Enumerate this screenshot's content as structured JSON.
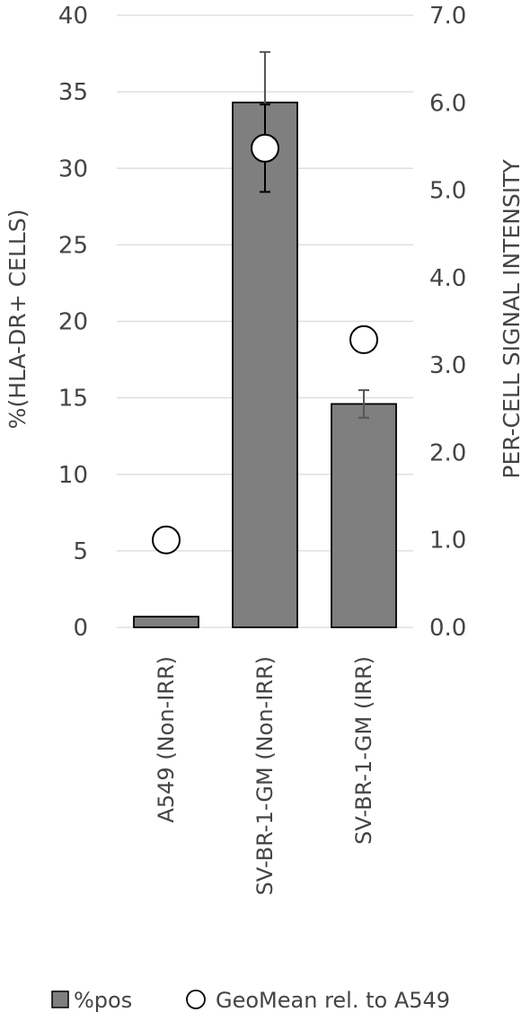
{
  "chart_data": {
    "type": "bar",
    "categories": [
      "A549 (Non-IRR)",
      "SV-BR-1-GM (Non-IRR)",
      "SV-BR-1-GM (IRR)"
    ],
    "series": [
      {
        "name": "%pos",
        "type": "bar",
        "axis": "left",
        "values": [
          0.7,
          34.3,
          14.6
        ],
        "error": [
          0,
          3.3,
          0.9
        ],
        "color": "#7f7f7f"
      },
      {
        "name": "GeoMean rel. to A549",
        "type": "scatter",
        "axis": "right",
        "values": [
          1.0,
          5.48,
          3.29
        ],
        "error": [
          0,
          0.5,
          0
        ],
        "color": "#ffffff"
      }
    ],
    "ylabel": "%(HLA-DR+ CELLS)",
    "y2label": "PER-CELL SIGNAL INTENSITY",
    "ylim": [
      0,
      40
    ],
    "y2lim": [
      0,
      7
    ],
    "yticks": [
      "0",
      "5",
      "10",
      "15",
      "20",
      "25",
      "30",
      "35",
      "40"
    ],
    "y2ticks": [
      "0.0",
      "1.0",
      "2.0",
      "3.0",
      "4.0",
      "5.0",
      "6.0",
      "7.0"
    ],
    "grid": true,
    "legend": "bottom"
  }
}
